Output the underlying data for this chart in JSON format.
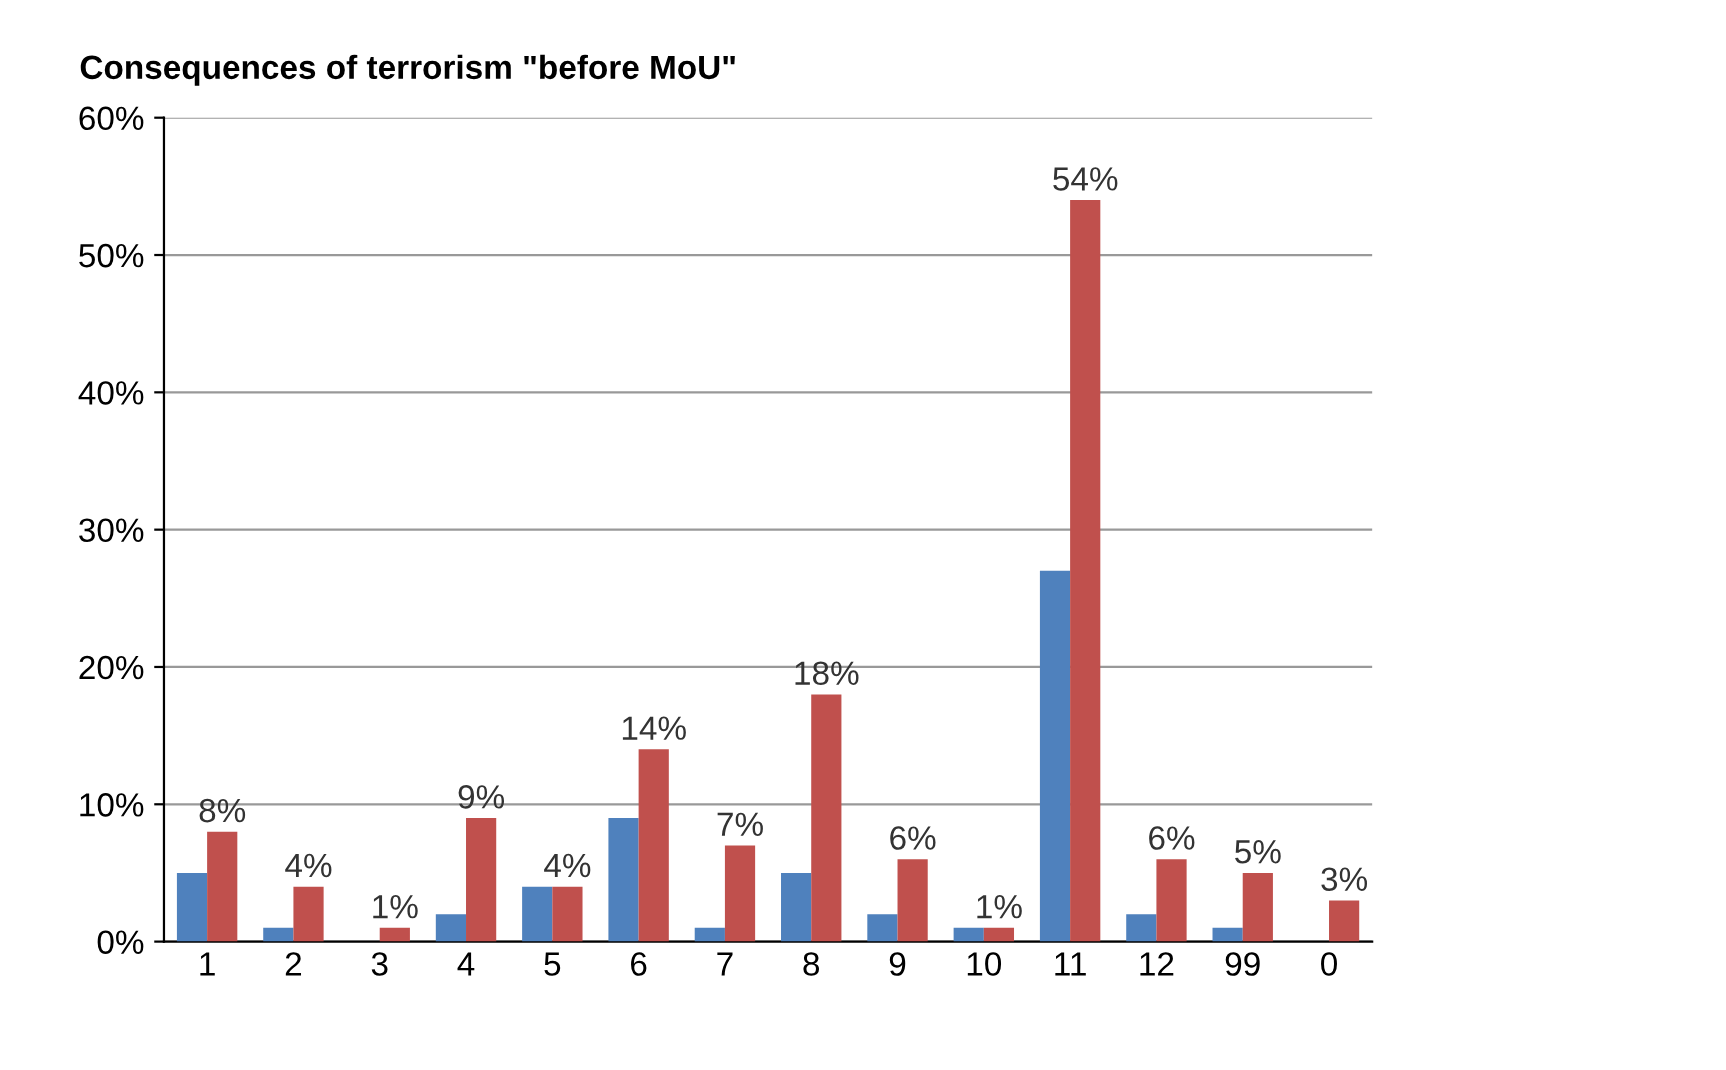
{
  "chart_data": {
    "type": "bar",
    "title": "Consequences of terrorism \"before MoU\"",
    "categories": [
      "1",
      "2",
      "3",
      "4",
      "5",
      "6",
      "7",
      "8",
      "9",
      "10",
      "11",
      "12",
      "99",
      "0"
    ],
    "series": [
      {
        "color": "#4f81bd",
        "values": [
          5,
          1,
          0,
          2,
          4,
          9,
          1,
          5,
          2,
          1,
          27,
          2,
          1,
          0
        ]
      },
      {
        "color": "#c0504d",
        "values": [
          8,
          4,
          1,
          9,
          4,
          14,
          7,
          18,
          6,
          1,
          54,
          6,
          5,
          3
        ],
        "value_labels": [
          "8%",
          "4%",
          "1%",
          "9%",
          "4%",
          "14%",
          "7%",
          "18%",
          "6%",
          "1%",
          "54%",
          "6%",
          "5%",
          "3%"
        ]
      }
    ],
    "ylim": [
      0,
      60
    ],
    "yticks": [
      {
        "value": 0,
        "label": "0%"
      },
      {
        "value": 10,
        "label": "10%"
      },
      {
        "value": 20,
        "label": "20%"
      },
      {
        "value": 30,
        "label": "30%"
      },
      {
        "value": 40,
        "label": "40%"
      },
      {
        "value": 50,
        "label": "50%"
      },
      {
        "value": 60,
        "label": "60%"
      }
    ],
    "grid": "y"
  }
}
